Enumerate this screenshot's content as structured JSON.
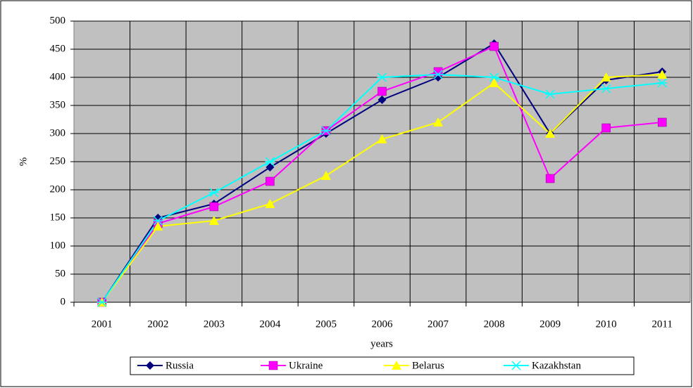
{
  "chart_data": {
    "type": "line",
    "categories": [
      "2001",
      "2002",
      "2003",
      "2004",
      "2005",
      "2006",
      "2007",
      "2008",
      "2009",
      "2010",
      "2011"
    ],
    "series": [
      {
        "name": "Russia",
        "color": "#000080",
        "values": [
          0,
          150,
          175,
          240,
          300,
          360,
          400,
          460,
          300,
          395,
          410
        ]
      },
      {
        "name": "Ukraine",
        "color": "#ff00ff",
        "values": [
          0,
          140,
          170,
          215,
          305,
          375,
          410,
          455,
          220,
          310,
          320
        ]
      },
      {
        "name": "Belarus",
        "color": "#ffff00",
        "values": [
          0,
          135,
          145,
          175,
          225,
          290,
          320,
          390,
          300,
          400,
          405
        ]
      },
      {
        "name": "Kazakhstan",
        "color": "#00ffff",
        "values": [
          0,
          145,
          195,
          250,
          305,
          400,
          405,
          400,
          370,
          380,
          390
        ]
      }
    ],
    "xlabel": "years",
    "ylabel": "%",
    "ylim": [
      0,
      500
    ],
    "yticks": [
      0,
      50,
      100,
      150,
      200,
      250,
      300,
      350,
      400,
      450,
      500
    ],
    "grid": true,
    "legend": "bottom"
  }
}
